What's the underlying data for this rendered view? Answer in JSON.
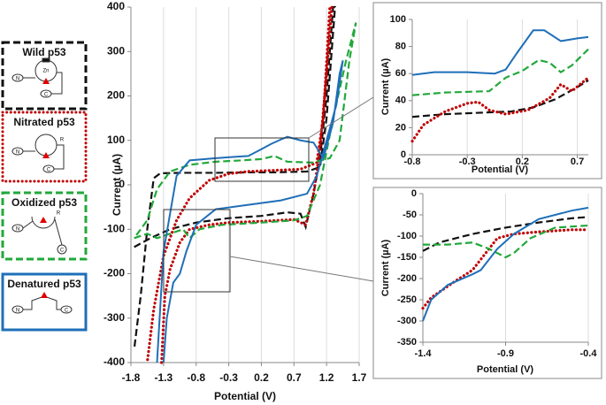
{
  "chart_data": [
    {
      "type": "line",
      "x_label": "Potential (V)",
      "y_label": "Current (µA)",
      "xlim": [
        -1.8,
        1.7
      ],
      "xticks": [
        -1.8,
        -1.3,
        -0.8,
        -0.3,
        0.2,
        0.7,
        1.2,
        1.7
      ],
      "ylim": [
        -400,
        400
      ],
      "yticks": [
        -400,
        -300,
        -200,
        -100,
        0,
        100,
        200,
        300,
        400
      ],
      "grid": "x",
      "icon_labels": [
        [
          "Zn",
          "N",
          "C"
        ],
        [
          "N",
          "C",
          "R"
        ],
        [
          "N",
          "C",
          "R"
        ],
        [
          "N",
          "C"
        ]
      ],
      "series": [
        {
          "name": "Wild p53",
          "color": "#111111",
          "style": "dashed",
          "x": [
            -1.75,
            -1.5,
            -1.2,
            -0.8,
            -0.3,
            0.2,
            0.6,
            0.8,
            0.88,
            1.0,
            1.1,
            1.2,
            1.3,
            1.33,
            1.2,
            1.1,
            0.9,
            0.4,
            0,
            -0.5,
            -1.0,
            -1.35,
            -1.45,
            -1.55,
            -1.65,
            -1.75
          ],
          "values": [
            -140,
            -120,
            -100,
            -85,
            -75,
            -70,
            -62,
            -65,
            -95,
            -20,
            60,
            200,
            400,
            400,
            150,
            40,
            30,
            28,
            28,
            27,
            27,
            26,
            15,
            -100,
            -250,
            -370
          ]
        },
        {
          "name": "Nitrated p53",
          "color": "#c00000",
          "style": "dotted",
          "x": [
            -1.33,
            -1.28,
            -1.2,
            -1.05,
            -0.9,
            -0.6,
            -0.3,
            0.2,
            0.7,
            0.88,
            1.0,
            1.1,
            1.2,
            1.28,
            1.25,
            1.15,
            1.05,
            0.8,
            0.3,
            0,
            -0.3,
            -0.6,
            -0.9,
            -1.1,
            -1.3,
            -1.45,
            -1.55
          ],
          "values": [
            -400,
            -250,
            -190,
            -130,
            -100,
            -90,
            -85,
            -82,
            -78,
            -90,
            -20,
            80,
            250,
            400,
            400,
            150,
            50,
            35,
            32,
            30,
            25,
            10,
            -30,
            -80,
            -160,
            -280,
            -400
          ]
        },
        {
          "name": "Oxidized p53",
          "color": "#22a83a",
          "style": "dashed",
          "x": [
            -1.75,
            -1.55,
            -1.4,
            -1.2,
            -1.0,
            -0.9,
            -0.75,
            -0.4,
            0.2,
            0.7,
            0.9,
            1.1,
            1.3,
            1.5,
            1.65,
            1.55,
            1.4,
            1.25,
            1.0,
            0.6,
            0.4,
            0.2,
            -0.1,
            -0.5,
            -0.9,
            -1.2,
            -1.4,
            -1.55,
            -1.75
          ],
          "values": [
            -120,
            -110,
            -120,
            -110,
            -100,
            -120,
            -100,
            -90,
            -85,
            -80,
            -70,
            0,
            150,
            280,
            365,
            280,
            100,
            60,
            50,
            52,
            65,
            58,
            55,
            52,
            45,
            30,
            -10,
            -80,
            -120
          ]
        },
        {
          "name": "Denatured p53",
          "color": "#1f6fb8",
          "style": "solid",
          "x": [
            -1.3,
            -1.25,
            -1.15,
            -1.05,
            -0.95,
            -0.8,
            -0.5,
            0,
            0.5,
            0.9,
            1.05,
            1.2,
            1.35,
            1.45,
            1.4,
            1.3,
            1.15,
            1.0,
            0.8,
            0.6,
            0.5,
            0.35,
            0.2,
            0,
            -0.5,
            -0.9,
            -1.1,
            -1.3,
            -1.4
          ],
          "values": [
            -400,
            -300,
            -220,
            -200,
            -150,
            -90,
            -55,
            -45,
            -35,
            -20,
            20,
            100,
            180,
            280,
            250,
            140,
            60,
            95,
            100,
            108,
            102,
            92,
            80,
            65,
            60,
            55,
            20,
            -150,
            -400
          ]
        }
      ]
    },
    {
      "type": "line",
      "x_label": "Potential (V)",
      "y_label": "Current (µA)",
      "xlim": [
        -0.8,
        0.8
      ],
      "xticks": [
        -0.8,
        -0.3,
        0.2,
        0.7
      ],
      "ylim": [
        0,
        100
      ],
      "yticks": [
        0,
        20,
        40,
        60,
        80,
        100
      ],
      "grid": "x",
      "series": [
        {
          "color": "#111111",
          "style": "dashed",
          "x": [
            -0.8,
            -0.5,
            -0.2,
            0.1,
            0.3,
            0.5,
            0.7,
            0.8
          ],
          "values": [
            28,
            30,
            31,
            32,
            35,
            41,
            50,
            55
          ]
        },
        {
          "color": "#c00000",
          "style": "dotted",
          "x": [
            -0.8,
            -0.7,
            -0.5,
            -0.3,
            -0.2,
            -0.1,
            0.05,
            0.25,
            0.45,
            0.55,
            0.65,
            0.8
          ],
          "values": [
            10,
            22,
            32,
            38,
            39,
            33,
            30,
            33,
            42,
            52,
            47,
            57
          ]
        },
        {
          "color": "#22a83a",
          "style": "dashed",
          "x": [
            -0.8,
            -0.5,
            -0.1,
            0.05,
            0.2,
            0.35,
            0.45,
            0.55,
            0.65,
            0.8
          ],
          "values": [
            44,
            46,
            47,
            57,
            62,
            70,
            68,
            61,
            66,
            78
          ]
        },
        {
          "color": "#1f6fb8",
          "style": "solid",
          "x": [
            -0.8,
            -0.6,
            -0.3,
            -0.05,
            0.05,
            0.15,
            0.3,
            0.4,
            0.55,
            0.7,
            0.8
          ],
          "values": [
            59,
            61,
            61,
            60,
            63,
            75,
            92,
            92,
            84,
            86,
            87
          ]
        }
      ]
    },
    {
      "type": "line",
      "x_label": "Potential (V)",
      "y_label": "Current (µA)",
      "xlim": [
        -1.4,
        -0.4
      ],
      "xticks": [
        -1.4,
        -0.9,
        -0.4
      ],
      "ylim": [
        -350,
        0
      ],
      "yticks": [
        -350,
        -300,
        -250,
        -200,
        -150,
        -100,
        -50,
        0
      ],
      "grid": "x",
      "series": [
        {
          "color": "#111111",
          "style": "dashed",
          "x": [
            -1.4,
            -1.3,
            -1.1,
            -0.9,
            -0.7,
            -0.5,
            -0.4
          ],
          "values": [
            -135,
            -115,
            -95,
            -80,
            -68,
            -58,
            -55
          ]
        },
        {
          "color": "#c00000",
          "style": "dotted",
          "x": [
            -1.4,
            -1.35,
            -1.2,
            -1.1,
            -1.0,
            -0.95,
            -0.85,
            -0.7,
            -0.5,
            -0.4
          ],
          "values": [
            -270,
            -245,
            -205,
            -180,
            -130,
            -105,
            -95,
            -90,
            -85,
            -85
          ]
        },
        {
          "color": "#22a83a",
          "style": "dashed",
          "x": [
            -1.4,
            -1.25,
            -1.1,
            -1.0,
            -0.9,
            -0.85,
            -0.75,
            -0.6,
            -0.4
          ],
          "values": [
            -120,
            -120,
            -115,
            -130,
            -150,
            -140,
            -105,
            -80,
            -75
          ]
        },
        {
          "color": "#1f6fb8",
          "style": "solid",
          "x": [
            -1.4,
            -1.35,
            -1.25,
            -1.1,
            -1.05,
            -0.95,
            -0.85,
            -0.7,
            -0.5,
            -0.4
          ],
          "values": [
            -300,
            -250,
            -215,
            -190,
            -180,
            -130,
            -95,
            -60,
            -40,
            -33
          ]
        }
      ]
    }
  ]
}
